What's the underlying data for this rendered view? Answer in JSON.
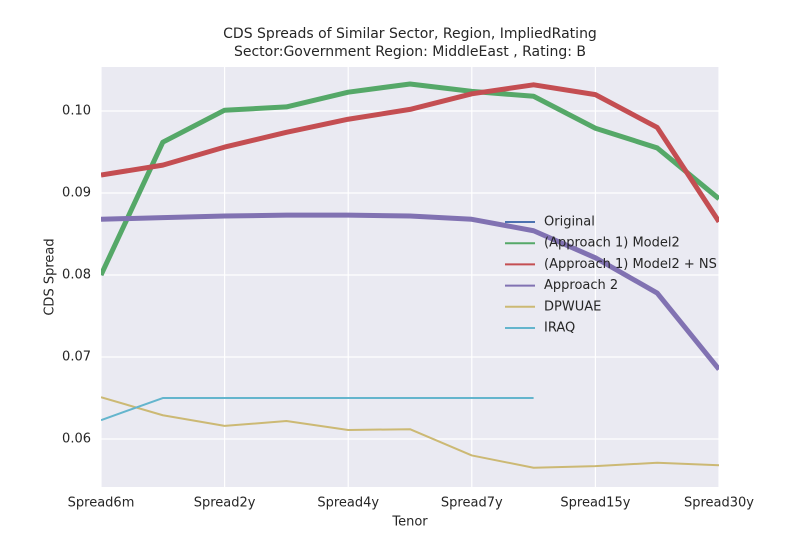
{
  "chart_data": {
    "type": "line",
    "title": "CDS Spreads of Similar Sector, Region, ImpliedRating",
    "subtitle": "Sector:Government Region: MiddleEast , Rating: B",
    "xlabel": "Tenor",
    "ylabel": "CDS Spread",
    "categories": [
      "Spread6m",
      null,
      "Spread2y",
      null,
      "Spread4y",
      null,
      "Spread7y",
      null,
      "Spread15y",
      null,
      "Spread30y"
    ],
    "ylim": [
      0.05415,
      0.10537
    ],
    "yticks": [
      0.06,
      0.07,
      0.08,
      0.09,
      {
        "value": 0.1,
        "label": "0.10"
      }
    ],
    "grid": true,
    "legend": "right",
    "series": [
      {
        "name": "Original",
        "color": "#4c72b0",
        "linewidth": 2,
        "values": [
          0.08,
          0.0962,
          0.1001,
          0.1005,
          0.1023,
          0.1033,
          0.1024,
          0.1018,
          0.0979,
          0.0955,
          0.0893
        ]
      },
      {
        "name": "(Approach 1) Model2",
        "color": "#55a868",
        "linewidth": 5,
        "values": [
          0.08,
          0.0962,
          0.1001,
          0.1005,
          0.1023,
          0.1033,
          0.1024,
          0.1018,
          0.0979,
          0.0955,
          0.0893
        ]
      },
      {
        "name": "(Approach 1) Model2 + NS",
        "color": "#c44e52",
        "linewidth": 5,
        "values": [
          0.0922,
          0.0934,
          0.0956,
          0.0974,
          0.099,
          0.1002,
          0.1021,
          0.1032,
          0.102,
          0.098,
          0.0865
        ]
      },
      {
        "name": "Approach 2",
        "color": "#8172b2",
        "linewidth": 5,
        "values": [
          0.0868,
          0.087,
          0.0872,
          0.0873,
          0.0873,
          0.0872,
          0.0868,
          0.0854,
          0.0821,
          0.0778,
          0.0685
        ]
      },
      {
        "name": "DPWUAE",
        "color": "#ccb974",
        "linewidth": 2,
        "values": [
          0.0651,
          0.0629,
          0.0616,
          0.0622,
          0.0611,
          0.0612,
          0.058,
          0.0565,
          0.0567,
          0.0571,
          0.0568
        ]
      },
      {
        "name": "IRAQ",
        "color": "#64b5cd",
        "linewidth": 2,
        "values": [
          0.0623,
          0.065,
          0.065,
          0.065,
          0.065,
          0.065,
          0.065,
          0.065,
          null,
          null,
          null
        ]
      }
    ]
  }
}
